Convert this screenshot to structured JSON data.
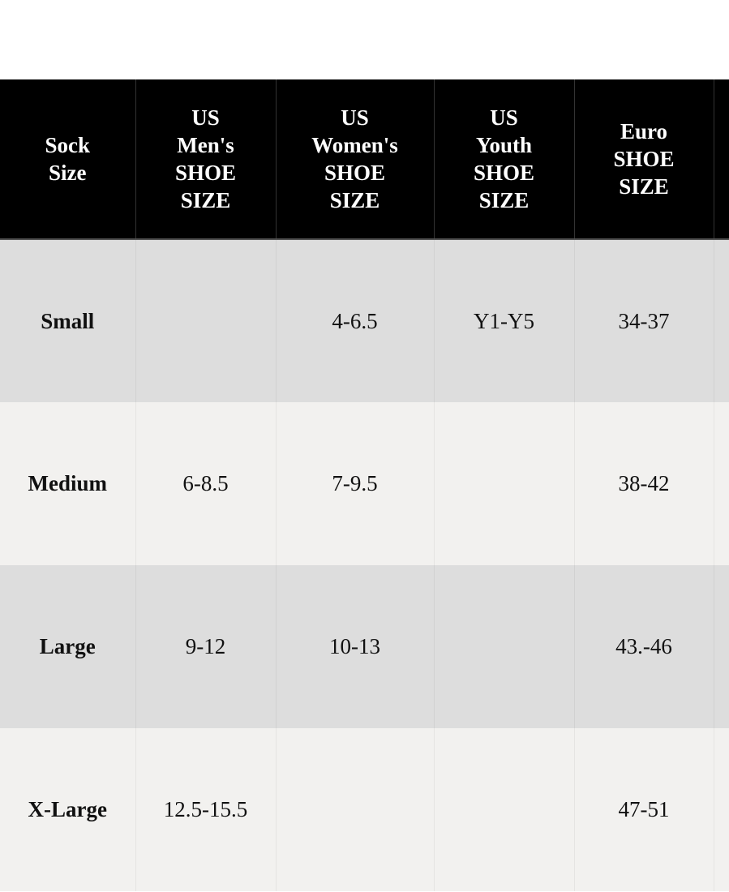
{
  "table": {
    "headers": [
      [
        "Sock",
        "Size"
      ],
      [
        "US",
        "Men's",
        "SHOE",
        "SIZE"
      ],
      [
        "US",
        "Women's",
        "SHOE",
        "SIZE"
      ],
      [
        "US",
        "Youth",
        "SHOE",
        "SIZE"
      ],
      [
        "Euro",
        "SHOE",
        "SIZE"
      ]
    ],
    "rows": [
      {
        "size": "Small",
        "mens": "",
        "womens": "4-6.5",
        "youth": "Y1-Y5",
        "euro": "34-37"
      },
      {
        "size": "Medium",
        "mens": "6-8.5",
        "womens": "7-9.5",
        "youth": "",
        "euro": "38-42"
      },
      {
        "size": "Large",
        "mens": "9-12",
        "womens": "10-13",
        "youth": "",
        "euro": "43.-46"
      },
      {
        "size": "X-Large",
        "mens": "12.5-15.5",
        "womens": "",
        "youth": "",
        "euro": "47-51"
      }
    ]
  },
  "colors": {
    "header_bg": "#000000",
    "row_dark": "#dddddd",
    "row_light": "#f2f1ef"
  }
}
